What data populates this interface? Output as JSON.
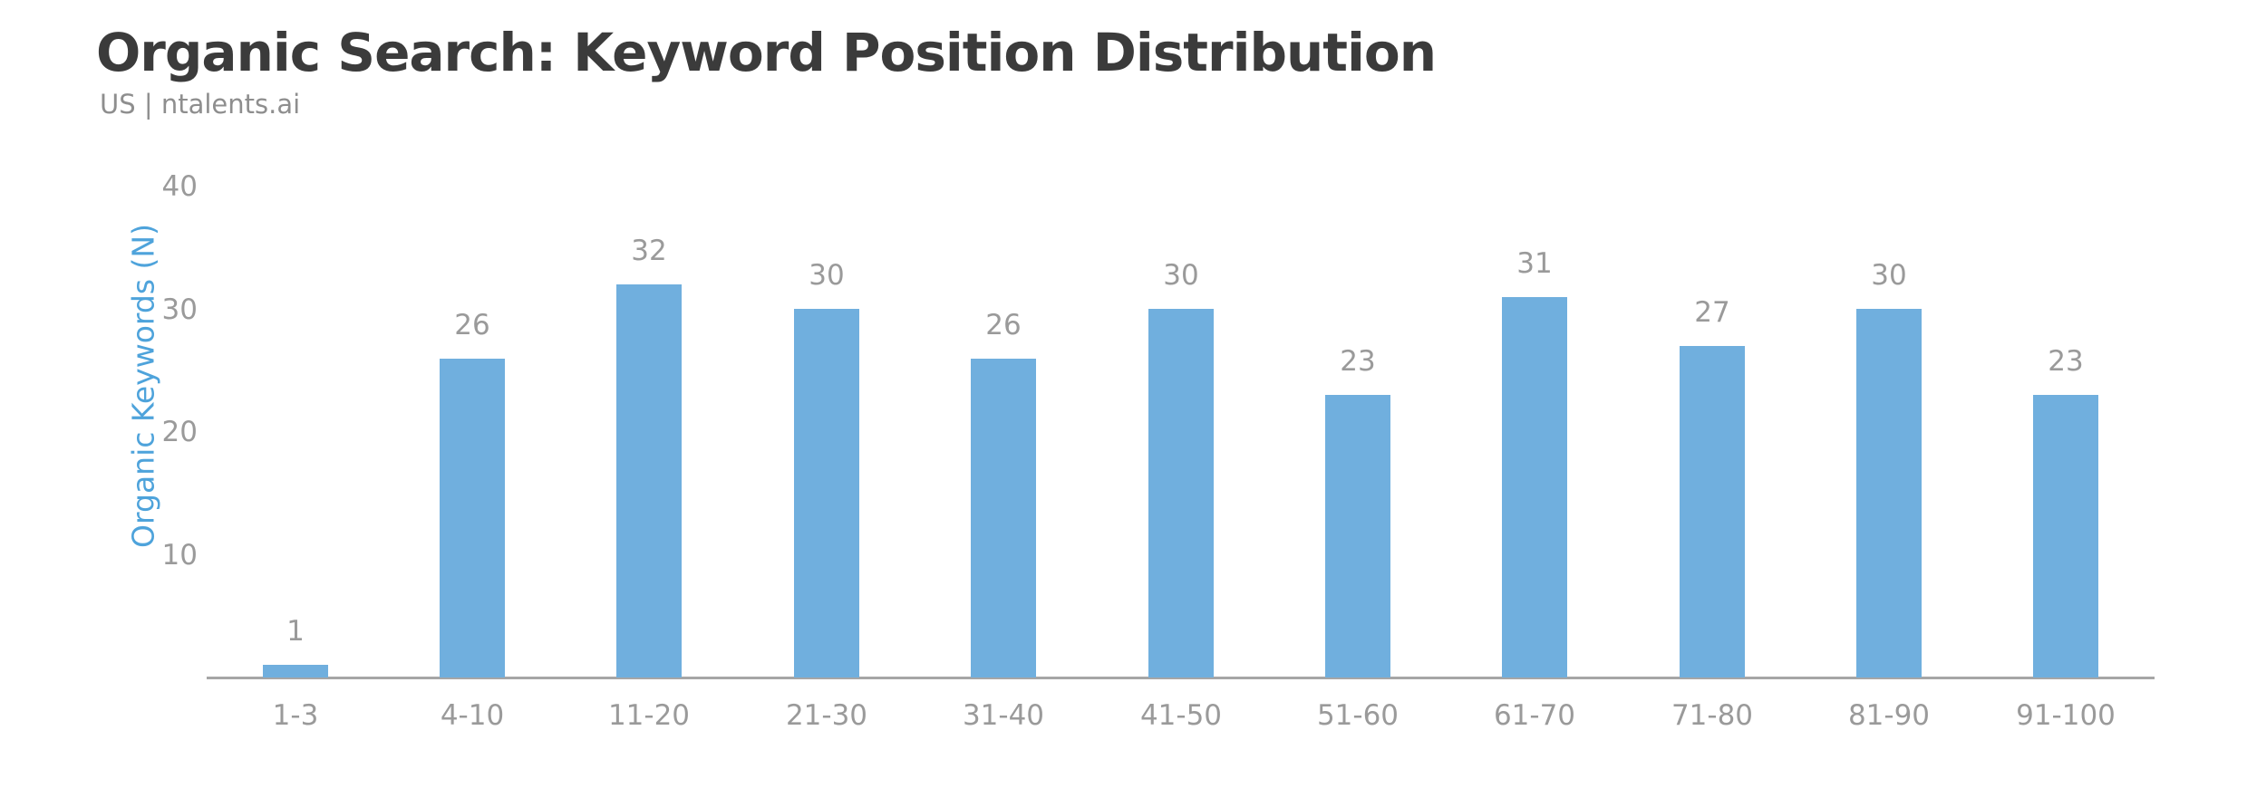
{
  "header": {
    "title": "Organic Search: Keyword Position Distribution",
    "subtitle": "US | ntalents.ai"
  },
  "chart_data": {
    "type": "bar",
    "title": "Organic Search: Keyword Position Distribution",
    "subtitle": "US | ntalents.ai",
    "xlabel": "",
    "ylabel": "Organic Keywords (N)",
    "categories": [
      "1-3",
      "4-10",
      "11-20",
      "21-30",
      "31-40",
      "41-50",
      "51-60",
      "61-70",
      "71-80",
      "81-90",
      "91-100"
    ],
    "values": [
      1,
      26,
      32,
      30,
      26,
      30,
      23,
      31,
      27,
      30,
      23
    ],
    "yticks": [
      10,
      20,
      30,
      40
    ],
    "ylim": [
      0,
      44
    ],
    "grid": false,
    "legend": "none",
    "data_labels": true,
    "colors": {
      "bar": "#70AFDE",
      "tick_label": "#9a9a9a",
      "data_label": "#9a9a9a",
      "axis_line": "#a6a6a6",
      "ylabel": "#4EA3DB",
      "title": "#3b3b3b",
      "subtitle": "#8e8e8e"
    }
  }
}
